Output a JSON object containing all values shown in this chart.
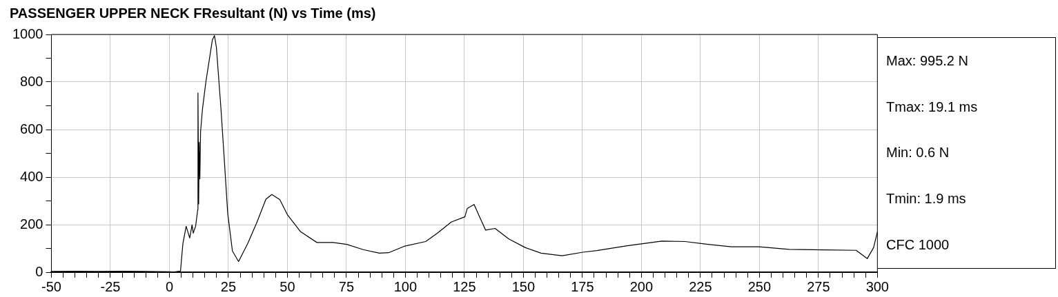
{
  "chart_data": {
    "type": "line",
    "title": "PASSENGER UPPER NECK FResultant (N) vs Time (ms)",
    "x": [
      -50,
      -40,
      -30,
      -20,
      -10,
      0,
      1.9,
      4.7,
      5.7,
      7.1,
      8.6,
      9.6,
      10.1,
      11.1,
      12,
      12.1,
      12.4,
      12.6,
      12.9,
      13.2,
      14,
      15.5,
      16.9,
      18.2,
      19.1,
      19.9,
      21.8,
      23.3,
      24.7,
      26.7,
      29.3,
      33.1,
      37,
      40.9,
      43.4,
      46.8,
      50,
      55.6,
      62.5,
      69.3,
      75.2,
      82.1,
      89,
      92.9,
      99.8,
      108.6,
      113.5,
      119.4,
      125.2,
      126.2,
      129.1,
      131.6,
      134,
      138,
      143.8,
      150.7,
      157.5,
      166.4,
      175.2,
      181.1,
      194,
      208.7,
      218.5,
      228.3,
      238.1,
      249.9,
      262.6,
      277.3,
      291,
      295.7,
      298.4,
      300
    ],
    "series": [
      {
        "color": "#000000",
        "values": [
          3,
          4,
          3,
          4,
          3,
          2,
          0.6,
          5,
          119,
          193,
          144,
          199,
          164,
          193,
          263,
          754,
          287,
          546,
          392,
          590,
          685,
          804,
          893,
          977,
          995,
          947,
          694,
          467,
          248,
          89,
          45,
          119,
          208,
          307,
          327,
          305,
          242,
          170,
          125,
          125,
          117,
          95,
          80,
          82,
          110,
          129,
          164,
          211,
          233,
          268,
          285,
          229,
          177,
          184,
          140,
          104,
          80,
          69,
          84,
          91,
          111,
          131,
          129,
          117,
          107,
          107,
          96,
          94,
          92,
          57,
          104,
          170
        ]
      }
    ],
    "xlim": [
      -50,
      300
    ],
    "xticks": [
      -50,
      {
        "value": -45,
        "label": null
      },
      {
        "value": -40,
        "label": null
      },
      {
        "value": -35,
        "label": null
      },
      {
        "value": -30,
        "label": null
      },
      -25,
      {
        "value": -20,
        "label": null
      },
      {
        "value": -15,
        "label": null
      },
      {
        "value": -10,
        "label": null
      },
      {
        "value": -5,
        "label": null
      },
      0,
      {
        "value": 5,
        "label": null
      },
      {
        "value": 10,
        "label": null
      },
      {
        "value": 15,
        "label": null
      },
      {
        "value": 20,
        "label": null
      },
      25,
      {
        "value": 30,
        "label": null
      },
      {
        "value": 35,
        "label": null
      },
      {
        "value": 40,
        "label": null
      },
      {
        "value": 45,
        "label": null
      },
      50,
      {
        "value": 55,
        "label": null
      },
      {
        "value": 60,
        "label": null
      },
      {
        "value": 65,
        "label": null
      },
      {
        "value": 70,
        "label": null
      },
      75,
      {
        "value": 80,
        "label": null
      },
      {
        "value": 85,
        "label": null
      },
      {
        "value": 90,
        "label": null
      },
      {
        "value": 95,
        "label": null
      },
      100,
      {
        "value": 105,
        "label": null
      },
      {
        "value": 110,
        "label": null
      },
      {
        "value": 115,
        "label": null
      },
      {
        "value": 120,
        "label": null
      },
      125,
      {
        "value": 130,
        "label": null
      },
      {
        "value": 135,
        "label": null
      },
      {
        "value": 140,
        "label": null
      },
      {
        "value": 145,
        "label": null
      },
      150,
      {
        "value": 155,
        "label": null
      },
      {
        "value": 160,
        "label": null
      },
      {
        "value": 165,
        "label": null
      },
      {
        "value": 170,
        "label": null
      },
      175,
      {
        "value": 180,
        "label": null
      },
      {
        "value": 185,
        "label": null
      },
      {
        "value": 190,
        "label": null
      },
      {
        "value": 195,
        "label": null
      },
      200,
      {
        "value": 205,
        "label": null
      },
      {
        "value": 210,
        "label": null
      },
      {
        "value": 215,
        "label": null
      },
      {
        "value": 220,
        "label": null
      },
      225,
      {
        "value": 230,
        "label": null
      },
      {
        "value": 235,
        "label": null
      },
      {
        "value": 240,
        "label": null
      },
      {
        "value": 245,
        "label": null
      },
      250,
      {
        "value": 255,
        "label": null
      },
      {
        "value": 260,
        "label": null
      },
      {
        "value": 265,
        "label": null
      },
      {
        "value": 270,
        "label": null
      },
      275,
      {
        "value": 280,
        "label": null
      },
      {
        "value": 285,
        "label": null
      },
      {
        "value": 290,
        "label": null
      },
      {
        "value": 295,
        "label": null
      },
      300
    ],
    "ylim": [
      0,
      1000
    ],
    "yticks": [
      0,
      {
        "value": 100,
        "label": null
      },
      200,
      {
        "value": 300,
        "label": null
      },
      400,
      {
        "value": 500,
        "label": null
      },
      600,
      {
        "value": 700,
        "label": null
      },
      800,
      {
        "value": 900,
        "label": null
      },
      1000
    ],
    "grid": true,
    "legend": false,
    "marker": "none",
    "line_style": "solid",
    "annotations": [
      "Max: 995.2 N",
      "Tmax: 19.1 ms",
      "Min: 0.6 N",
      "Tmin: 1.9 ms",
      "CFC 1000"
    ]
  }
}
